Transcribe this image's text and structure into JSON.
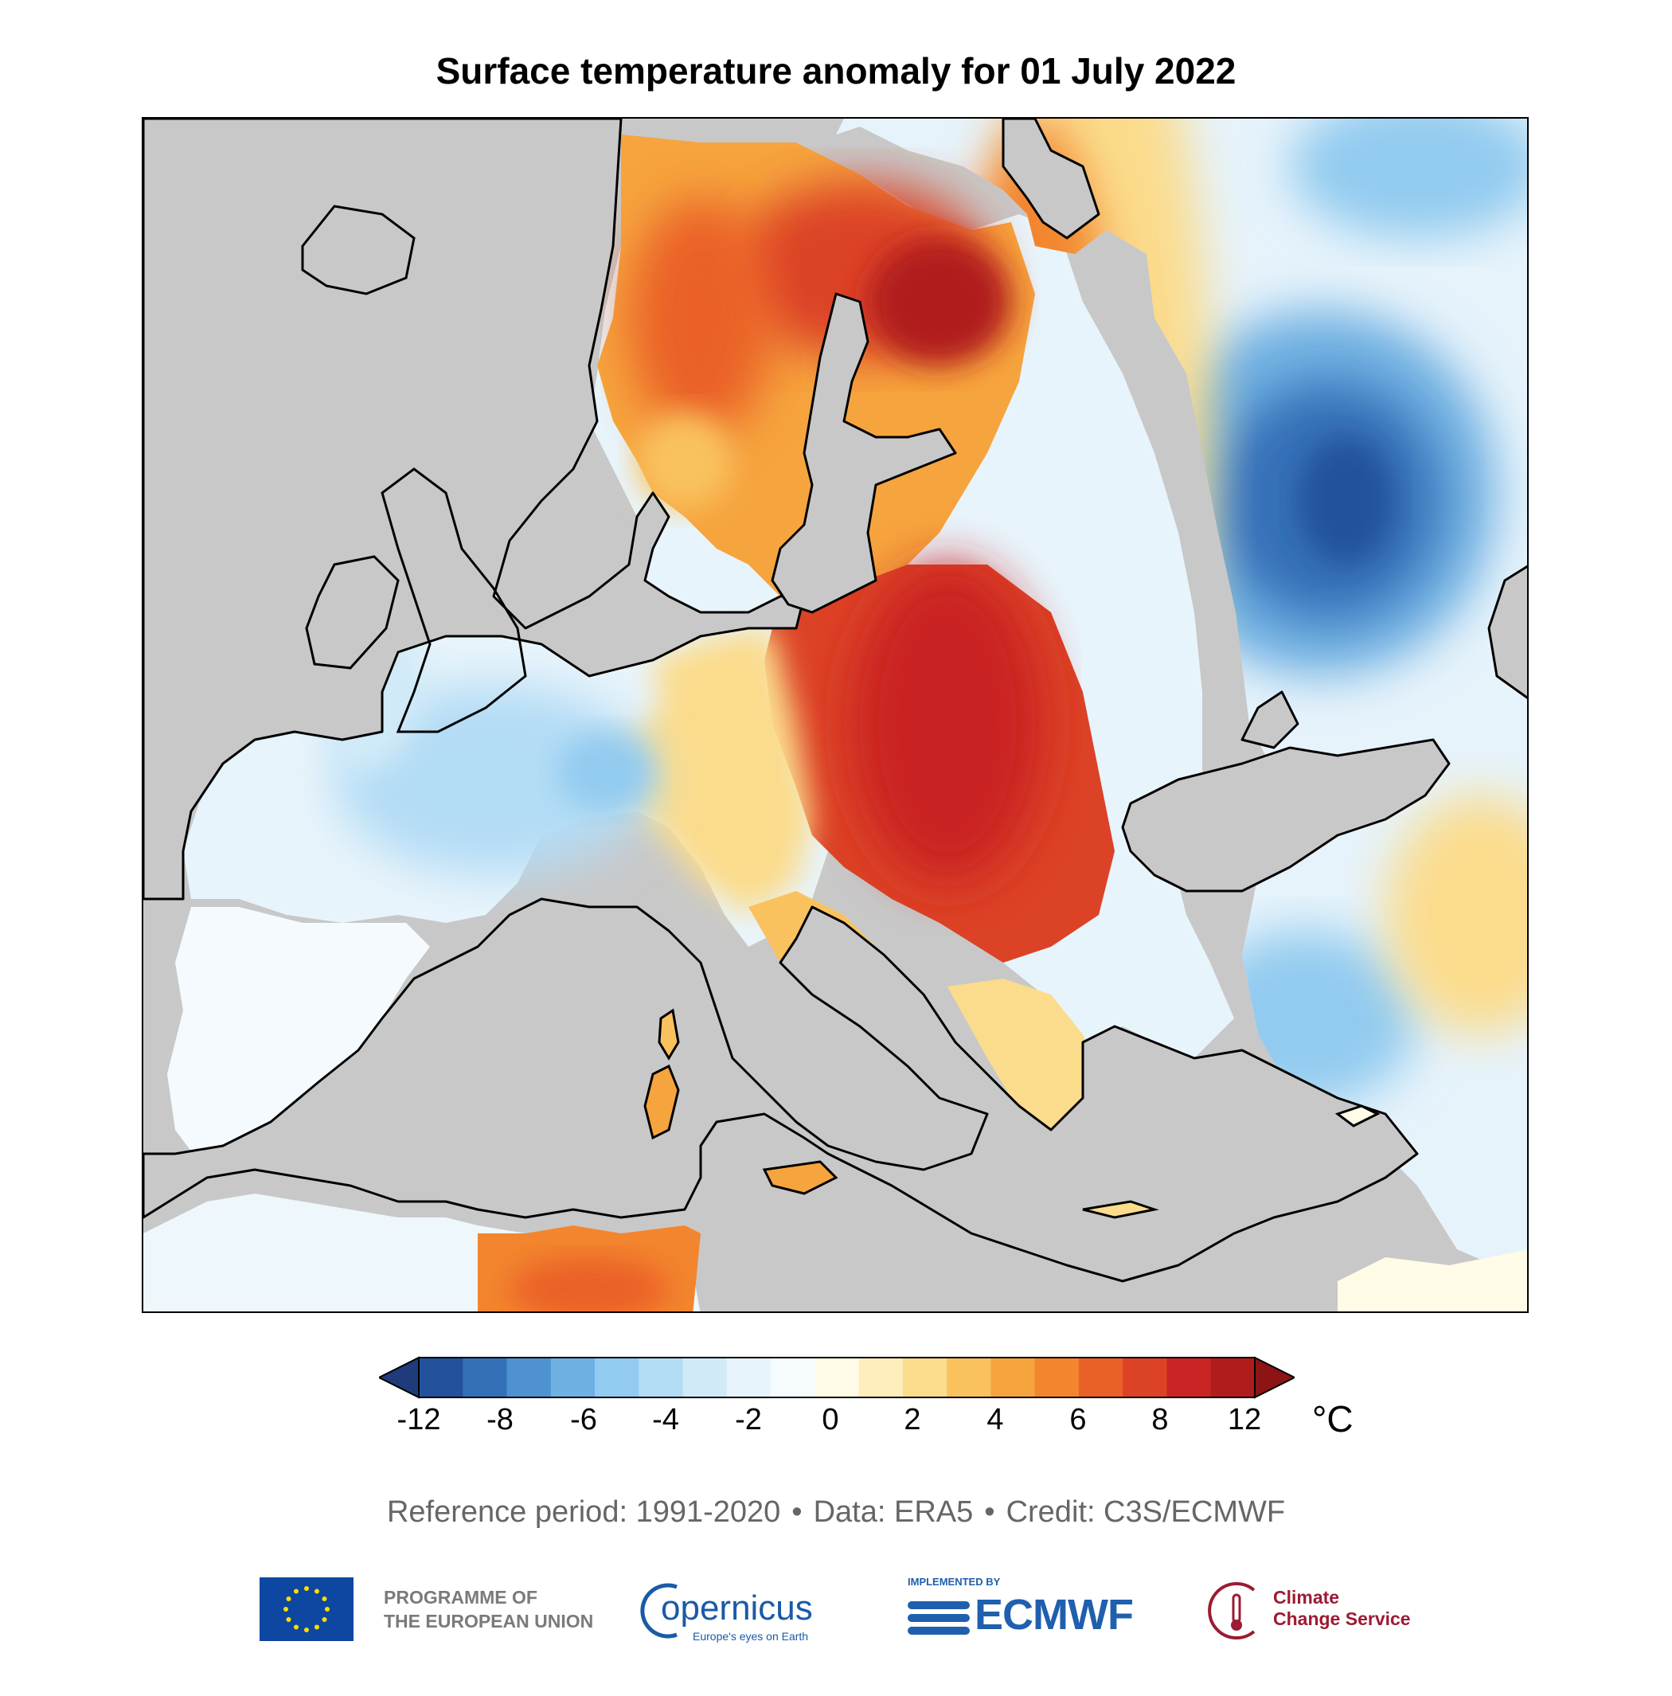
{
  "title": "Surface temperature anomaly for 01 July 2022",
  "colors": {
    "land_mask": "#c8c8c8",
    "coastline": "#000000",
    "scale": [
      "#1f3b7a",
      "#23519c",
      "#3470b8",
      "#4e93d0",
      "#6fb0e2",
      "#92cbef",
      "#b3dcf5",
      "#d0eaf8",
      "#e7f4fb",
      "#f6fbfe",
      "#fffbe6",
      "#fdeebc",
      "#fbdc8c",
      "#f9c25f",
      "#f6a43e",
      "#f3852e",
      "#ea6128",
      "#dc4226",
      "#c92424",
      "#b01c1c",
      "#8c1414"
    ]
  },
  "colorbar": {
    "tick_labels": [
      "-12",
      "-8",
      "-6",
      "-4",
      "-2",
      "0",
      "2",
      "4",
      "6",
      "8",
      "12"
    ],
    "unit": "°C"
  },
  "anomaly_regions": {
    "scandinavia": "warm",
    "finland_and_western_russia": "very warm",
    "eastern_europe": "very warm",
    "italy_and_balkans": "warm",
    "north_africa": "warm",
    "british_isles": "slightly cool",
    "france": "cool",
    "iberia": "near normal",
    "central_russia": "cold",
    "turkey": "slightly cool"
  },
  "credit": {
    "reference": "Reference period: 1991-2020",
    "data": "Data: ERA5",
    "credit": "Credit: C3S/ECMWF",
    "separator": "•"
  },
  "logos": {
    "eu_line1": "PROGRAMME OF",
    "eu_line2": "THE EUROPEAN UNION",
    "copernicus_word": "opernicus",
    "copernicus_tagline": "Europe's eyes on Earth",
    "ecmwf_small": "IMPLEMENTED BY",
    "ecmwf_word": "ECMWF",
    "c3s_line1": "Climate",
    "c3s_line2": "Change Service"
  }
}
